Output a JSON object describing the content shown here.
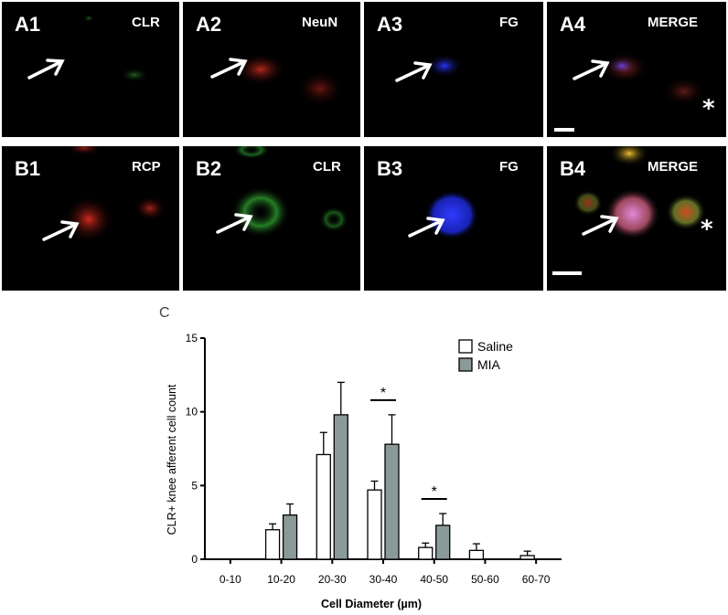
{
  "panels": {
    "A1": {
      "id": "A1",
      "label": "CLR"
    },
    "A2": {
      "id": "A2",
      "label": "NeuN"
    },
    "A3": {
      "id": "A3",
      "label": "FG"
    },
    "A4": {
      "id": "A4",
      "label": "MERGE"
    },
    "B1": {
      "id": "B1",
      "label": "RCP"
    },
    "B2": {
      "id": "B2",
      "label": "CLR"
    },
    "B3": {
      "id": "B3",
      "label": "FG"
    },
    "B4": {
      "id": "B4",
      "label": "MERGE"
    }
  },
  "asterisk": "*",
  "chart_data": {
    "type": "bar",
    "panel_label": "C",
    "categories": [
      "0-10",
      "10-20",
      "20-30",
      "30-40",
      "40-50",
      "50-60",
      "60-70"
    ],
    "series": [
      {
        "name": "Saline",
        "color": "#ffffff",
        "values": [
          0,
          2.0,
          7.1,
          4.7,
          0.8,
          0.6,
          0.25
        ],
        "errors": [
          0,
          0.4,
          1.5,
          0.6,
          0.3,
          0.45,
          0.3
        ]
      },
      {
        "name": "MIA",
        "color": "#8a9a98",
        "values": [
          0,
          3.0,
          9.8,
          7.8,
          2.3,
          0,
          0
        ],
        "errors": [
          0,
          0.75,
          2.2,
          2.0,
          0.8,
          0,
          0
        ]
      }
    ],
    "significance": [
      {
        "category": "30-40",
        "label": "*"
      },
      {
        "category": "40-50",
        "label": "*"
      }
    ],
    "xlabel": "Cell Diameter (µm)",
    "ylabel": "CLR+ knee afferent cell count",
    "ylim": [
      0,
      15
    ],
    "yticks": [
      "0",
      "5",
      "10",
      "15"
    ],
    "legend_position": "top-right"
  }
}
